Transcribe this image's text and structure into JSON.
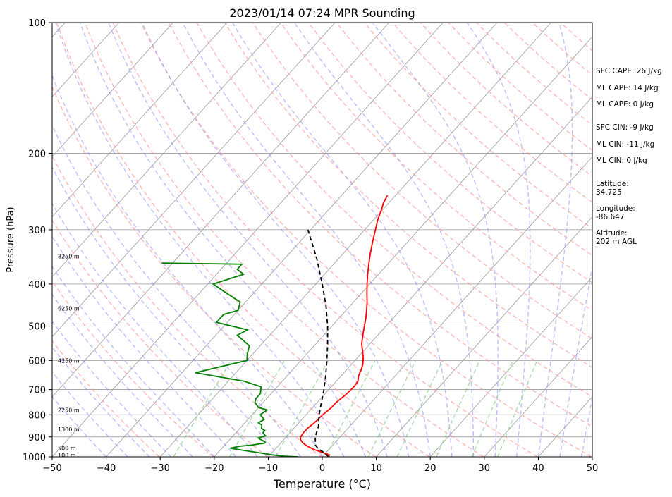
{
  "chart_data": {
    "type": "line",
    "subtype": "skew-T log-P sounding",
    "title": "2023/01/14 07:24 MPR Sounding",
    "xlabel": "Temperature (°C)",
    "ylabel": "Pressure (hPa)",
    "xlim": [
      -50,
      50
    ],
    "ylim": [
      1000,
      100
    ],
    "y_scale": "log",
    "x_ticks": [
      -50,
      -40,
      -30,
      -20,
      -10,
      0,
      10,
      20,
      30,
      40,
      50
    ],
    "y_ticks": [
      100,
      200,
      300,
      400,
      500,
      600,
      700,
      800,
      900,
      1000
    ],
    "x_tick_labels": [
      "−50",
      "−40",
      "−30",
      "−20",
      "−10",
      "0",
      "10",
      "20",
      "30",
      "40",
      "50"
    ],
    "y_tick_labels": [
      "100",
      "200",
      "300",
      "400",
      "500",
      "600",
      "700",
      "800",
      "900",
      "1000"
    ],
    "grid": true,
    "height_labels": [
      {
        "p": 990,
        "text": "100 m"
      },
      {
        "p": 955,
        "text": "500 m"
      },
      {
        "p": 865,
        "text": "1300 m"
      },
      {
        "p": 780,
        "text": "2250 m"
      },
      {
        "p": 600,
        "text": "4250 m"
      },
      {
        "p": 455,
        "text": "6250 m"
      },
      {
        "p": 345,
        "text": "8250 m"
      }
    ],
    "series": [
      {
        "color": "#ff0000",
        "points": [
          [
            1000,
            1.2
          ],
          [
            990,
            1.0
          ],
          [
            975,
            -1.0
          ],
          [
            960,
            -3.0
          ],
          [
            950,
            -4.0
          ],
          [
            940,
            -5.0
          ],
          [
            930,
            -5.8
          ],
          [
            920,
            -6.5
          ],
          [
            910,
            -7.0
          ],
          [
            900,
            -7.3
          ],
          [
            880,
            -7.5
          ],
          [
            860,
            -7.5
          ],
          [
            840,
            -7.2
          ],
          [
            820,
            -7.0
          ],
          [
            810,
            -7.0
          ],
          [
            790,
            -6.8
          ],
          [
            770,
            -6.5
          ],
          [
            750,
            -6.5
          ],
          [
            720,
            -6.0
          ],
          [
            690,
            -5.8
          ],
          [
            670,
            -6.0
          ],
          [
            650,
            -6.8
          ],
          [
            630,
            -7.3
          ],
          [
            610,
            -8.0
          ],
          [
            590,
            -9.0
          ],
          [
            570,
            -10.2
          ],
          [
            550,
            -11.5
          ],
          [
            520,
            -13.0
          ],
          [
            500,
            -14.0
          ],
          [
            480,
            -15.0
          ],
          [
            460,
            -16.2
          ],
          [
            440,
            -17.5
          ],
          [
            420,
            -19.0
          ],
          [
            400,
            -20.5
          ],
          [
            380,
            -22.0
          ],
          [
            360,
            -23.5
          ],
          [
            340,
            -25.0
          ],
          [
            320,
            -26.5
          ],
          [
            300,
            -28.0
          ],
          [
            285,
            -29.2
          ],
          [
            270,
            -30.2
          ],
          [
            260,
            -31.0
          ],
          [
            250,
            -31.5
          ]
        ]
      },
      {
        "color": "#008000",
        "points": [
          [
            1000,
            -4.5
          ],
          [
            997,
            -7.0
          ],
          [
            990,
            -9.5
          ],
          [
            980,
            -12.0
          ],
          [
            965,
            -16.0
          ],
          [
            955,
            -18.5
          ],
          [
            945,
            -17.0
          ],
          [
            940,
            -15.0
          ],
          [
            930,
            -13.0
          ],
          [
            925,
            -13.0
          ],
          [
            920,
            -13.5
          ],
          [
            905,
            -15.0
          ],
          [
            895,
            -14.0
          ],
          [
            880,
            -15.0
          ],
          [
            870,
            -15.0
          ],
          [
            860,
            -16.0
          ],
          [
            845,
            -16.5
          ],
          [
            835,
            -17.5
          ],
          [
            820,
            -17.0
          ],
          [
            800,
            -18.5
          ],
          [
            780,
            -18.0
          ],
          [
            770,
            -20.0
          ],
          [
            750,
            -21.5
          ],
          [
            735,
            -22.0
          ],
          [
            715,
            -22.0
          ],
          [
            690,
            -23.0
          ],
          [
            670,
            -27.0
          ],
          [
            640,
            -37.5
          ],
          [
            600,
            -30.0
          ],
          [
            580,
            -31.0
          ],
          [
            555,
            -32.0
          ],
          [
            525,
            -36.0
          ],
          [
            510,
            -35.0
          ],
          [
            490,
            -42.0
          ],
          [
            470,
            -42.0
          ],
          [
            460,
            -40.0
          ],
          [
            440,
            -41.0
          ],
          [
            420,
            -45.0
          ],
          [
            400,
            -49.0
          ],
          [
            380,
            -45.0
          ],
          [
            370,
            -47.0
          ],
          [
            360,
            -47.0
          ],
          [
            358,
            -62.0
          ]
        ]
      },
      {
        "color": "#000000",
        "style": "dashed",
        "points": [
          [
            1000,
            1.2
          ],
          [
            970,
            -1.0
          ],
          [
            960,
            -2.0
          ],
          [
            940,
            -3.2
          ],
          [
            900,
            -4.6
          ],
          [
            850,
            -5.8
          ],
          [
            800,
            -7.6
          ],
          [
            750,
            -9.2
          ],
          [
            700,
            -10.9
          ],
          [
            650,
            -12.9
          ],
          [
            600,
            -15.2
          ],
          [
            550,
            -17.8
          ],
          [
            500,
            -20.8
          ],
          [
            450,
            -24.4
          ],
          [
            400,
            -28.8
          ],
          [
            350,
            -34.0
          ],
          [
            300,
            -40.5
          ]
        ]
      }
    ],
    "parameters": [
      "SFC CAPE: 26 J/kg",
      "ML CAPE: 14 J/kg",
      "ML CAPE: 0 J/kg",
      "SFC CIN: -9 J/kg",
      "ML CIN: -11 J/kg",
      "ML CIN: 0 J/kg"
    ],
    "location": {
      "lat_label": "Latitude:",
      "lat_value": "34.725",
      "lon_label": "Longitude:",
      "lon_value": "-86.647",
      "alt_label": "Altitude:",
      "alt_value": "202 m AGL"
    },
    "colors": {
      "temperature": "#ff0000",
      "dewpoint": "#008000",
      "parcel": "#000000",
      "dry_adiabat": "#ff9999",
      "moist_adiabat": "#8888ff",
      "mixing_ratio": "#88cc88",
      "isotherm": "#999999",
      "isobar": "#999999"
    }
  }
}
